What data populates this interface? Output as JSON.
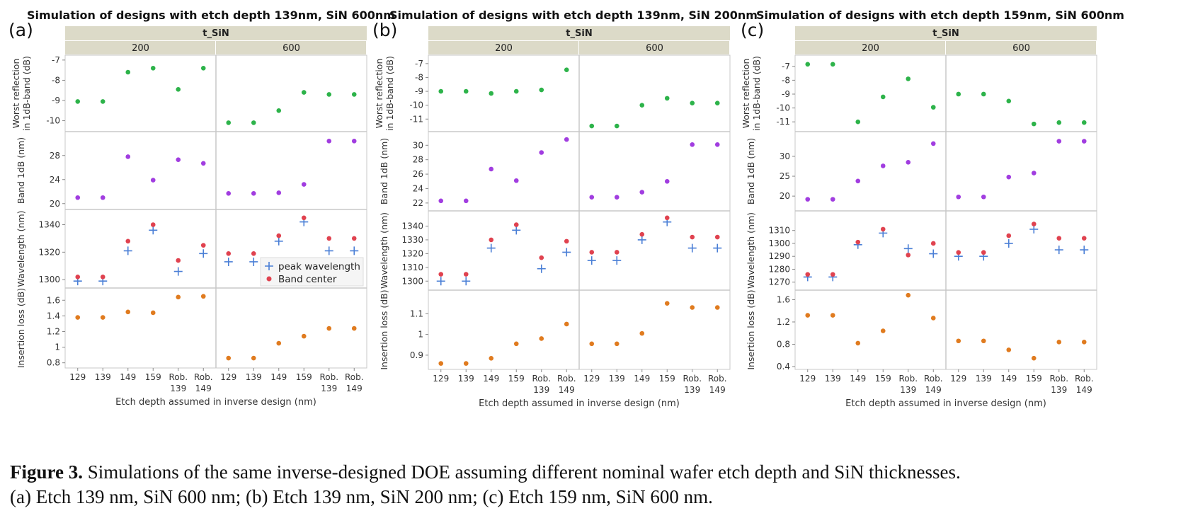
{
  "chart_data": [
    {
      "type": "scatter",
      "panel_label": "(a)",
      "title": "Simulation of designs with etch depth 139nm, SiN 600nm",
      "facet_header": "t_SiN",
      "facets": [
        "200",
        "600"
      ],
      "categories": [
        "129",
        "139",
        "149",
        "159",
        "Rob.\n139",
        "Rob.\n149"
      ],
      "xlabel": "Etch depth assumed in inverse design (nm)",
      "rows": [
        {
          "ylabel": "Worst reflection\nin 1dB-band (dB)",
          "ylim": [
            -10.4,
            -6.9
          ],
          "ticks": [
            -10,
            -9,
            -8,
            -7
          ],
          "series": [
            {
              "marker": "dot",
              "color": "#2db34a",
              "values": [
                [
                  -9.05,
                  -9.05,
                  -7.6,
                  -7.4,
                  -8.45,
                  -7.4
                ],
                [
                  -10.1,
                  -10.1,
                  -9.5,
                  -8.6,
                  -8.7,
                  -8.7
                ]
              ]
            }
          ]
        },
        {
          "ylabel": "Band 1dB (nm)",
          "ylim": [
            19.5,
            31.5
          ],
          "ticks": [
            20,
            24,
            28
          ],
          "series": [
            {
              "marker": "dot",
              "color": "#a13de0",
              "values": [
                [
                  21.0,
                  21.0,
                  27.8,
                  23.9,
                  27.3,
                  26.7
                ],
                [
                  21.7,
                  21.7,
                  21.8,
                  23.2,
                  30.4,
                  30.4
                ]
              ]
            }
          ]
        },
        {
          "ylabel": "Wavelength (nm)",
          "ylim": [
            1296,
            1349
          ],
          "ticks": [
            1300,
            1320,
            1340
          ],
          "series": [
            {
              "name": "peak wavelength",
              "marker": "plus",
              "color": "#4a7fd6",
              "values": [
                [
                  1299,
                  1299,
                  1321,
                  1336,
                  1306,
                  1319
                ],
                [
                  1313,
                  1313,
                  1328,
                  1342,
                  1321,
                  1321
                ]
              ]
            },
            {
              "name": "Band center",
              "marker": "dot",
              "color": "#e0424f",
              "values": [
                [
                  1302,
                  1302,
                  1328,
                  1340,
                  1314,
                  1325
                ],
                [
                  1319,
                  1319,
                  1332,
                  1345,
                  1330,
                  1330
                ]
              ]
            }
          ]
        },
        {
          "ylabel": "Insertion loss (dB)",
          "ylim": [
            0.77,
            1.72
          ],
          "ticks": [
            0.8,
            1.0,
            1.2,
            1.4,
            1.6
          ],
          "series": [
            {
              "marker": "dot",
              "color": "#e07b1f",
              "values": [
                [
                  1.38,
                  1.38,
                  1.45,
                  1.44,
                  1.64,
                  1.65
                ],
                [
                  0.86,
                  0.86,
                  1.05,
                  1.14,
                  1.24,
                  1.24
                ]
              ]
            }
          ]
        }
      ]
    },
    {
      "type": "scatter",
      "panel_label": "(b)",
      "title": "Simulation of designs with etch depth 139nm, SiN 200nm",
      "facet_header": "t_SiN",
      "facets": [
        "200",
        "600"
      ],
      "categories": [
        "129",
        "139",
        "149",
        "159",
        "Rob.\n139",
        "Rob.\n149"
      ],
      "xlabel": "Etch depth assumed in inverse design (nm)",
      "rows": [
        {
          "ylabel": "Worst reflection\nin 1dB-band (dB)",
          "ylim": [
            -11.7,
            -6.6
          ],
          "ticks": [
            -11,
            -10,
            -9,
            -8,
            -7
          ],
          "series": [
            {
              "marker": "dot",
              "color": "#2db34a",
              "values": [
                [
                  -9.0,
                  -9.0,
                  -9.15,
                  -9.0,
                  -8.9,
                  -7.45
                ],
                [
                  -11.5,
                  -11.5,
                  -10.0,
                  -9.5,
                  -9.85,
                  -9.85
                ]
              ]
            }
          ]
        },
        {
          "ylabel": "Band 1dB (nm)",
          "ylim": [
            21.3,
            31.5
          ],
          "ticks": [
            22,
            24,
            26,
            28,
            30
          ],
          "series": [
            {
              "marker": "dot",
              "color": "#a13de0",
              "values": [
                [
                  22.3,
                  22.3,
                  26.7,
                  25.1,
                  29.0,
                  30.8
                ],
                [
                  22.8,
                  22.8,
                  23.5,
                  25.0,
                  30.1,
                  30.1
                ]
              ]
            }
          ]
        },
        {
          "ylabel": "Wavelength (nm)",
          "ylim": [
            1295.5,
            1349
          ],
          "ticks": [
            1300,
            1310,
            1320,
            1330,
            1340
          ],
          "series": [
            {
              "name": "peak wavelength",
              "marker": "plus",
              "color": "#4a7fd6",
              "values": [
                [
                  1300,
                  1300,
                  1324,
                  1337,
                  1309,
                  1321
                ],
                [
                  1315,
                  1315,
                  1330,
                  1343,
                  1324,
                  1324
                ]
              ]
            },
            {
              "name": "Band center",
              "marker": "dot",
              "color": "#e0424f",
              "values": [
                [
                  1305,
                  1305,
                  1330,
                  1341,
                  1317,
                  1329
                ],
                [
                  1321,
                  1321,
                  1334,
                  1346,
                  1332,
                  1332
                ]
              ]
            }
          ]
        },
        {
          "ylabel": "Insertion loss (dB)",
          "ylim": [
            0.845,
            1.2
          ],
          "ticks": [
            0.9,
            1.0,
            1.1
          ],
          "series": [
            {
              "marker": "dot",
              "color": "#e07b1f",
              "values": [
                [
                  0.86,
                  0.86,
                  0.885,
                  0.955,
                  0.98,
                  1.05
                ],
                [
                  0.955,
                  0.955,
                  1.005,
                  1.15,
                  1.13,
                  1.13
                ]
              ]
            }
          ]
        }
      ]
    },
    {
      "type": "scatter",
      "panel_label": "(c)",
      "title": "Simulation of designs with etch depth 159nm, SiN 600nm",
      "facet_header": "t_SiN",
      "facets": [
        "200",
        "600"
      ],
      "categories": [
        "129",
        "139",
        "149",
        "159",
        "Rob.\n139",
        "Rob.\n149"
      ],
      "xlabel": "Etch depth assumed in inverse design (nm)",
      "rows": [
        {
          "ylabel": "Worst reflection\nin 1dB-band (dB)",
          "ylim": [
            -11.5,
            -6.4
          ],
          "ticks": [
            -11,
            -10,
            -9,
            -8,
            -7
          ],
          "series": [
            {
              "marker": "dot",
              "color": "#2db34a",
              "values": [
                [
                  -6.85,
                  -6.85,
                  -11.0,
                  -9.2,
                  -7.9,
                  -9.95
                ],
                [
                  -9.0,
                  -9.0,
                  -9.5,
                  -11.15,
                  -11.05,
                  -11.05
                ]
              ]
            }
          ]
        },
        {
          "ylabel": "Band 1dB (nm)",
          "ylim": [
            17,
            35.5
          ],
          "ticks": [
            20,
            25,
            30
          ],
          "series": [
            {
              "marker": "dot",
              "color": "#a13de0",
              "values": [
                [
                  19.2,
                  19.2,
                  23.8,
                  27.6,
                  28.5,
                  33.2
                ],
                [
                  19.8,
                  19.8,
                  24.8,
                  25.8,
                  33.8,
                  33.8
                ]
              ]
            }
          ]
        },
        {
          "ylabel": "Wavelength (nm)",
          "ylim": [
            1266,
            1323
          ],
          "ticks": [
            1270,
            1280,
            1290,
            1300,
            1310
          ],
          "series": [
            {
              "name": "peak wavelength",
              "marker": "plus",
              "color": "#4a7fd6",
              "values": [
                [
                  1274,
                  1274,
                  1299,
                  1308,
                  1296,
                  1292
                ],
                [
                  1290,
                  1290,
                  1300,
                  1311,
                  1295,
                  1295
                ]
              ]
            },
            {
              "name": "Band center",
              "marker": "dot",
              "color": "#e0424f",
              "values": [
                [
                  1276,
                  1276,
                  1301,
                  1311,
                  1291,
                  1300
                ],
                [
                  1293,
                  1293,
                  1306,
                  1315,
                  1304,
                  1304
                ]
              ]
            }
          ]
        },
        {
          "ylabel": "Insertion loss (dB)",
          "ylim": [
            0.4,
            1.72
          ],
          "ticks": [
            0.4,
            0.8,
            1.2,
            1.6
          ],
          "series": [
            {
              "marker": "dot",
              "color": "#e07b1f",
              "values": [
                [
                  1.32,
                  1.32,
                  0.82,
                  1.04,
                  1.68,
                  1.27
                ],
                [
                  0.86,
                  0.86,
                  0.7,
                  0.55,
                  0.84,
                  0.84
                ]
              ]
            }
          ]
        }
      ]
    }
  ],
  "legend": {
    "items": [
      "peak wavelength",
      "Band center"
    ]
  },
  "caption": {
    "label": "Figure 3.",
    "line1": " Simulations of the same inverse-designed DOE assuming different nominal wafer etch depth and SiN thicknesses.",
    "line2": "(a) Etch 139 nm, SiN 600 nm; (b) Etch 139 nm, SiN 200 nm; (c) Etch 159 nm, SiN 600 nm."
  },
  "colors": {
    "header_bg": "#dcdac8",
    "frame": "#c8c8c8",
    "panel_bg": "#ffffff"
  }
}
